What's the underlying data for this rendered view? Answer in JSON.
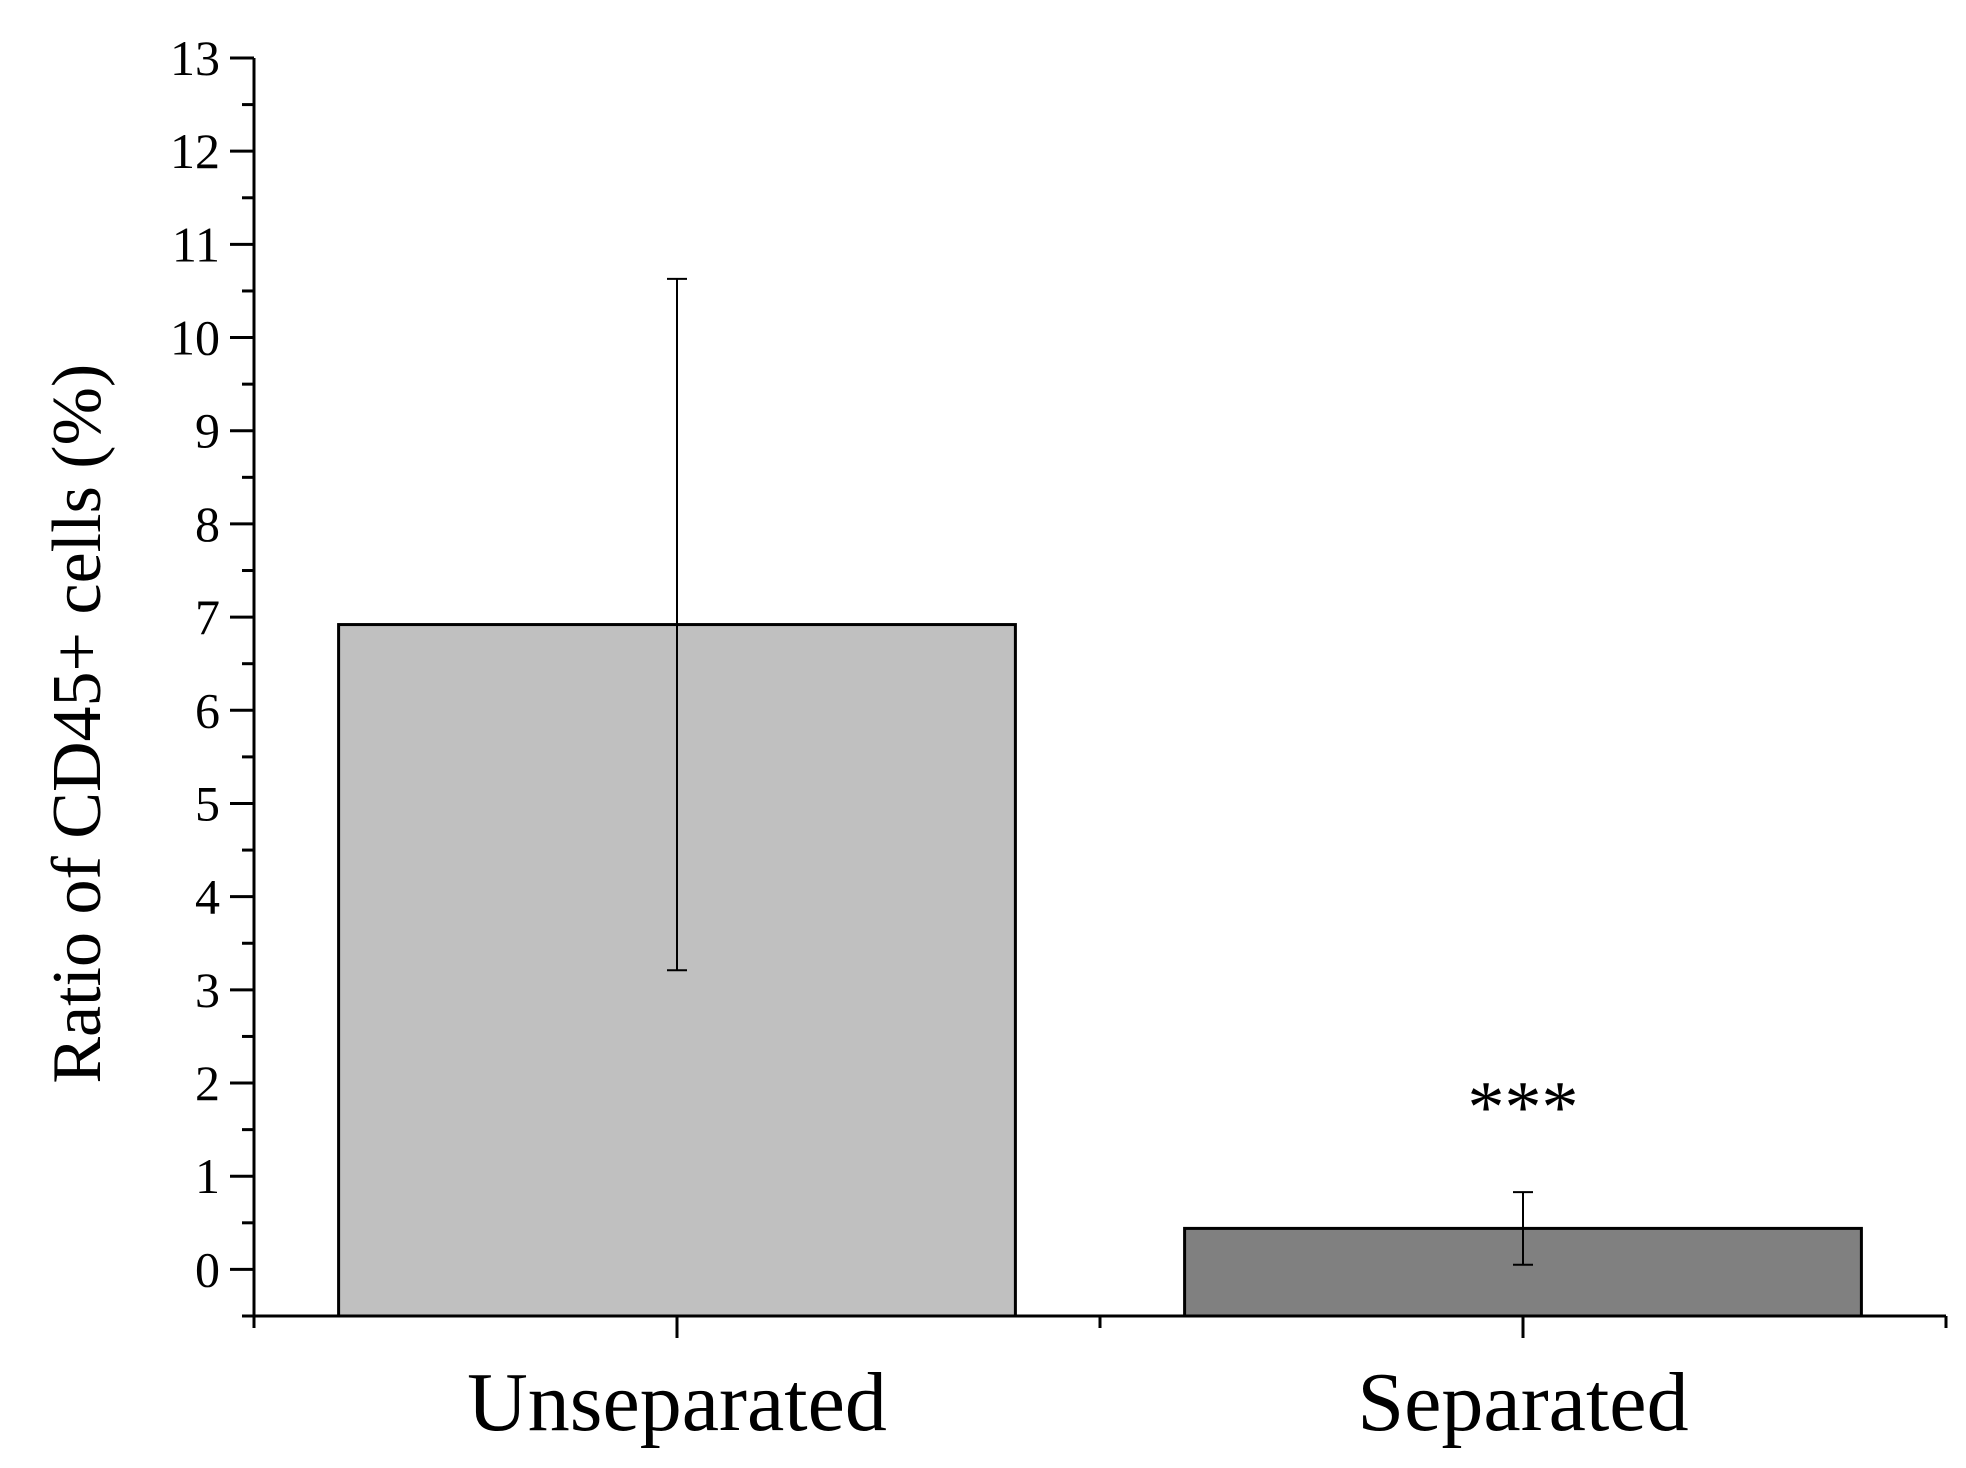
{
  "chart_data": {
    "type": "bar",
    "title": "",
    "xlabel": "",
    "ylabel": "Ratio of  CD45+ cells (%)",
    "ylim": [
      -0.5,
      13
    ],
    "yticks": [
      0,
      1,
      2,
      3,
      4,
      5,
      6,
      7,
      8,
      9,
      10,
      11,
      12,
      13
    ],
    "ytick_labels": [
      "0",
      "1",
      "2",
      "3",
      "4",
      "5",
      "6",
      "7",
      "8",
      "9",
      "10",
      "11",
      "12",
      "13"
    ],
    "grid": false,
    "categories": [
      "Unseparated",
      "Separated"
    ],
    "values": [
      6.92,
      0.44
    ],
    "error_high": [
      10.63,
      0.83
    ],
    "error_low": [
      3.21,
      0.05
    ],
    "colors": [
      "#c0c0c0",
      "#808080"
    ],
    "annotations": [
      {
        "category": "Separated",
        "text": "***"
      }
    ]
  }
}
